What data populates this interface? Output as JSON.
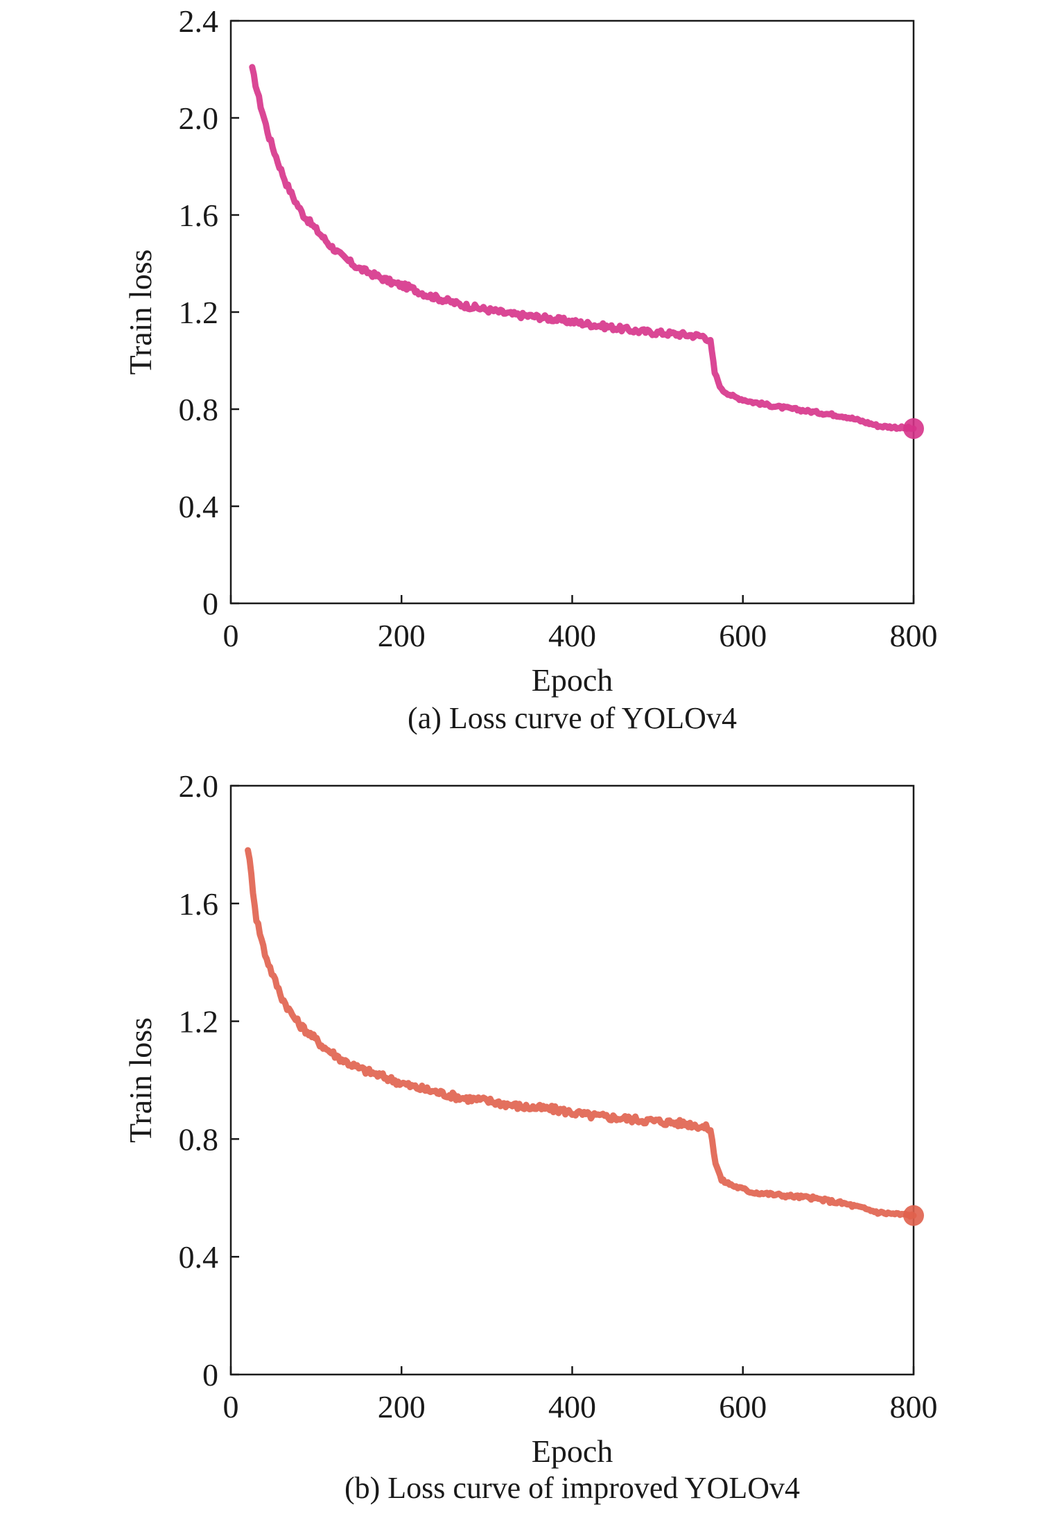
{
  "chart_data": [
    {
      "type": "line",
      "caption": "(a) Loss curve of YOLOv4",
      "xlabel": "Epoch",
      "ylabel": "Train loss",
      "xlim": [
        0,
        800
      ],
      "ylim": [
        0,
        2.4
      ],
      "xticks": [
        "0",
        "200",
        "400",
        "600",
        "800"
      ],
      "yticks": [
        "0",
        "0.4",
        "0.8",
        "1.2",
        "1.6",
        "2.0",
        "2.4"
      ],
      "grid": false,
      "color": "#d6338a",
      "series": [
        {
          "name": "YOLOv4",
          "x": [
            25,
            35,
            45,
            55,
            65,
            75,
            85,
            100,
            115,
            130,
            150,
            170,
            190,
            210,
            230,
            250,
            270,
            300,
            330,
            360,
            400,
            440,
            480,
            520,
            555,
            562,
            567,
            575,
            590,
            610,
            640,
            680,
            720,
            760,
            800
          ],
          "values": [
            2.2,
            2.05,
            1.92,
            1.82,
            1.73,
            1.66,
            1.6,
            1.54,
            1.48,
            1.43,
            1.38,
            1.35,
            1.32,
            1.3,
            1.27,
            1.25,
            1.23,
            1.21,
            1.19,
            1.18,
            1.16,
            1.14,
            1.12,
            1.11,
            1.1,
            1.08,
            0.95,
            0.88,
            0.85,
            0.83,
            0.81,
            0.79,
            0.77,
            0.73,
            0.72
          ]
        }
      ]
    },
    {
      "type": "line",
      "caption": "(b) Loss curve of improved YOLOv4",
      "xlabel": "Epoch",
      "ylabel": "Train loss",
      "xlim": [
        0,
        800
      ],
      "ylim": [
        0,
        2.0
      ],
      "xticks": [
        "0",
        "200",
        "400",
        "600",
        "800"
      ],
      "yticks": [
        "0",
        "0.4",
        "0.8",
        "1.2",
        "1.6",
        "2.0"
      ],
      "grid": false,
      "color": "#e0604c",
      "series": [
        {
          "name": "Improved YOLOv4",
          "x": [
            20,
            30,
            40,
            50,
            60,
            70,
            80,
            95,
            110,
            130,
            150,
            170,
            190,
            210,
            240,
            270,
            300,
            340,
            380,
            420,
            460,
            500,
            540,
            555,
            562,
            568,
            575,
            590,
            610,
            640,
            680,
            720,
            760,
            800
          ],
          "values": [
            1.79,
            1.55,
            1.43,
            1.35,
            1.28,
            1.23,
            1.19,
            1.15,
            1.11,
            1.07,
            1.04,
            1.02,
            1.0,
            0.98,
            0.96,
            0.94,
            0.93,
            0.91,
            0.9,
            0.88,
            0.87,
            0.86,
            0.85,
            0.84,
            0.83,
            0.72,
            0.66,
            0.64,
            0.62,
            0.61,
            0.6,
            0.58,
            0.55,
            0.54
          ]
        }
      ]
    }
  ]
}
